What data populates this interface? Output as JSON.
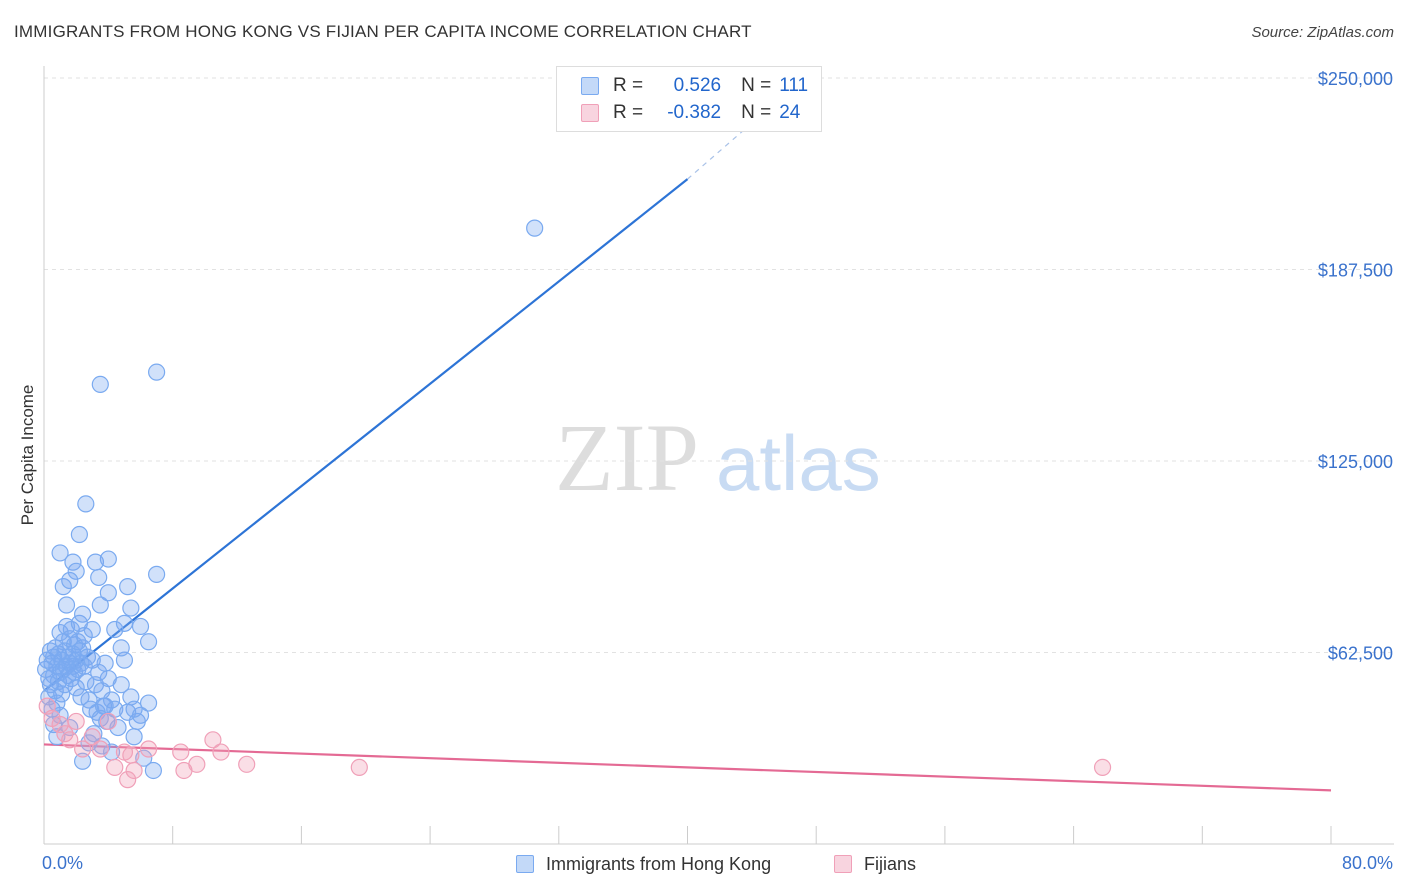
{
  "title": "IMMIGRANTS FROM HONG KONG VS FIJIAN PER CAPITA INCOME CORRELATION CHART",
  "source": "Source: ZipAtlas.com",
  "watermark": {
    "zip": "ZIP",
    "atlas": "atlas"
  },
  "legend": {
    "r_label": "R =",
    "n_label": "N =",
    "rows": [
      {
        "r": "0.526",
        "n": "111",
        "color": "#7aaaf0"
      },
      {
        "r": "-0.382",
        "n": "24",
        "color": "#f0a0b8"
      }
    ]
  },
  "chart_data": {
    "type": "scatter",
    "title": "IMMIGRANTS FROM HONG KONG VS FIJIAN PER CAPITA INCOME CORRELATION CHART",
    "xlabel": "",
    "ylabel": "Per Capita Income",
    "xlim": [
      0,
      80
    ],
    "ylim": [
      0,
      250000
    ],
    "x_tick_labels": [
      "0.0%",
      "80.0%"
    ],
    "y_ticks": [
      62500,
      125000,
      187500,
      250000
    ],
    "y_tick_labels": [
      "$62,500",
      "$125,000",
      "$187,500",
      "$250,000"
    ],
    "legend_position": "top-center",
    "series": [
      {
        "name": "Immigrants from Hong Kong",
        "color": "#7aaaf0",
        "line_color": "#2d74d6",
        "trend": {
          "x": [
            0,
            40
          ],
          "y": [
            50000,
            217000
          ],
          "dash_to": [
            43.5,
            233000
          ]
        },
        "points": [
          [
            0.1,
            57000
          ],
          [
            0.2,
            60000
          ],
          [
            0.3,
            54000
          ],
          [
            0.3,
            48000
          ],
          [
            0.4,
            63000
          ],
          [
            0.4,
            52000
          ],
          [
            0.5,
            59000
          ],
          [
            0.5,
            44000
          ],
          [
            0.6,
            61000
          ],
          [
            0.6,
            55000
          ],
          [
            0.7,
            50000
          ],
          [
            0.7,
            64000
          ],
          [
            0.8,
            58000
          ],
          [
            0.8,
            46000
          ],
          [
            0.9,
            62000
          ],
          [
            0.9,
            53000
          ],
          [
            1.0,
            69000
          ],
          [
            1.0,
            56000
          ],
          [
            1.1,
            60000
          ],
          [
            1.1,
            49000
          ],
          [
            1.2,
            66000
          ],
          [
            1.2,
            57000
          ],
          [
            1.3,
            63000
          ],
          [
            1.3,
            52000
          ],
          [
            1.4,
            71000
          ],
          [
            1.4,
            58000
          ],
          [
            1.5,
            55000
          ],
          [
            1.5,
            61000
          ],
          [
            1.6,
            67000
          ],
          [
            1.6,
            59000
          ],
          [
            1.7,
            54000
          ],
          [
            1.7,
            70000
          ],
          [
            1.8,
            62000
          ],
          [
            1.8,
            58000
          ],
          [
            1.9,
            65000
          ],
          [
            1.9,
            56000
          ],
          [
            2.0,
            60000
          ],
          [
            2.0,
            51000
          ],
          [
            2.1,
            66000
          ],
          [
            2.1,
            57000
          ],
          [
            2.2,
            72000
          ],
          [
            2.2,
            63000
          ],
          [
            2.3,
            59000
          ],
          [
            2.3,
            48000
          ],
          [
            2.4,
            64000
          ],
          [
            2.5,
            58000
          ],
          [
            2.5,
            68000
          ],
          [
            2.6,
            53000
          ],
          [
            2.7,
            61000
          ],
          [
            2.8,
            47000
          ],
          [
            2.9,
            44000
          ],
          [
            3.0,
            60000
          ],
          [
            3.1,
            36000
          ],
          [
            3.2,
            52000
          ],
          [
            3.3,
            43000
          ],
          [
            3.4,
            56000
          ],
          [
            3.5,
            41000
          ],
          [
            3.6,
            50000
          ],
          [
            3.7,
            45000
          ],
          [
            3.8,
            59000
          ],
          [
            3.9,
            40000
          ],
          [
            4.0,
            54000
          ],
          [
            4.2,
            47000
          ],
          [
            4.4,
            44000
          ],
          [
            4.6,
            38000
          ],
          [
            4.8,
            52000
          ],
          [
            5.0,
            60000
          ],
          [
            5.2,
            43000
          ],
          [
            5.4,
            48000
          ],
          [
            5.6,
            35000
          ],
          [
            5.8,
            40000
          ],
          [
            6.0,
            42000
          ],
          [
            6.2,
            28000
          ],
          [
            6.5,
            46000
          ],
          [
            6.8,
            24000
          ],
          [
            1.2,
            84000
          ],
          [
            1.0,
            95000
          ],
          [
            1.8,
            92000
          ],
          [
            2.2,
            101000
          ],
          [
            2.6,
            111000
          ],
          [
            3.0,
            70000
          ],
          [
            3.5,
            78000
          ],
          [
            3.2,
            92000
          ],
          [
            3.4,
            87000
          ],
          [
            2.0,
            89000
          ],
          [
            1.4,
            78000
          ],
          [
            1.6,
            86000
          ],
          [
            4.0,
            82000
          ],
          [
            4.4,
            70000
          ],
          [
            4.8,
            64000
          ],
          [
            5.0,
            72000
          ],
          [
            5.2,
            84000
          ],
          [
            5.4,
            77000
          ],
          [
            6.0,
            71000
          ],
          [
            6.5,
            66000
          ],
          [
            7.0,
            88000
          ],
          [
            3.5,
            150000
          ],
          [
            7.0,
            154000
          ],
          [
            30.5,
            201000
          ],
          [
            0.6,
            39000
          ],
          [
            2.4,
            27000
          ],
          [
            1.0,
            42000
          ],
          [
            1.6,
            38000
          ],
          [
            2.8,
            33000
          ],
          [
            3.6,
            32000
          ],
          [
            4.2,
            30000
          ],
          [
            0.8,
            35000
          ],
          [
            4.0,
            93000
          ],
          [
            2.4,
            75000
          ],
          [
            3.8,
            45000
          ],
          [
            5.6,
            44000
          ]
        ]
      },
      {
        "name": "Fijians",
        "color": "#f0a0b8",
        "line_color": "#e46a94",
        "trend": {
          "x": [
            0,
            80
          ],
          "y": [
            32500,
            17500
          ]
        },
        "points": [
          [
            0.2,
            45000
          ],
          [
            0.5,
            41000
          ],
          [
            1.0,
            39000
          ],
          [
            1.3,
            36000
          ],
          [
            1.6,
            34000
          ],
          [
            2.0,
            40000
          ],
          [
            2.4,
            31000
          ],
          [
            3.0,
            35000
          ],
          [
            3.5,
            31000
          ],
          [
            4.0,
            40000
          ],
          [
            4.4,
            25000
          ],
          [
            5.0,
            30000
          ],
          [
            5.4,
            29000
          ],
          [
            5.6,
            24000
          ],
          [
            5.2,
            21000
          ],
          [
            6.5,
            31000
          ],
          [
            8.5,
            30000
          ],
          [
            8.7,
            24000
          ],
          [
            9.5,
            26000
          ],
          [
            10.5,
            34000
          ],
          [
            11.0,
            30000
          ],
          [
            12.6,
            26000
          ],
          [
            19.6,
            25000
          ],
          [
            65.8,
            25000
          ]
        ]
      }
    ]
  }
}
